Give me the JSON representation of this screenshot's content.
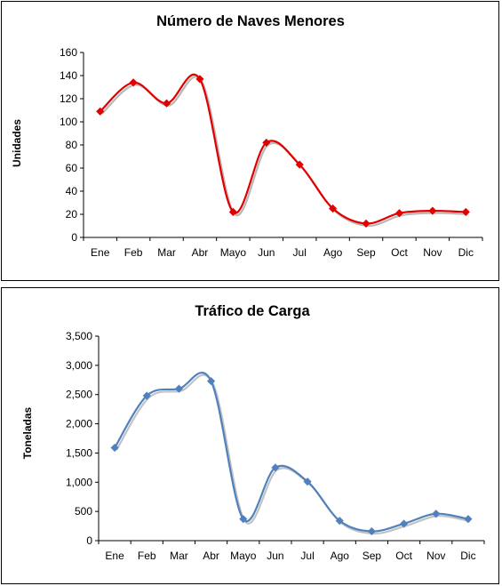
{
  "chart_data": [
    {
      "type": "line",
      "title": "Número de Naves Menores",
      "xlabel": "",
      "ylabel": "Unidades",
      "categories": [
        "Ene",
        "Feb",
        "Mar",
        "Abr",
        "Mayo",
        "Jun",
        "Jul",
        "Ago",
        "Sep",
        "Oct",
        "Nov",
        "Dic"
      ],
      "series": [
        {
          "values": [
            109,
            134,
            116,
            137,
            22,
            82,
            63,
            25,
            12,
            21,
            23,
            22
          ]
        }
      ],
      "ylim": [
        0,
        160
      ],
      "yticks": [
        0,
        20,
        40,
        60,
        80,
        100,
        120,
        140,
        160
      ],
      "ytick_labels": [
        "0",
        "20",
        "40",
        "60",
        "80",
        "100",
        "120",
        "140",
        "160"
      ],
      "smooth": true,
      "marker": "diamond",
      "color": "#e00000",
      "grid": false,
      "legend": "none"
    },
    {
      "type": "line",
      "title": "Tráfico de Carga",
      "xlabel": "",
      "ylabel": "Toneladas",
      "categories": [
        "Ene",
        "Feb",
        "Mar",
        "Abr",
        "Mayo",
        "Jun",
        "Jul",
        "Ago",
        "Sep",
        "Oct",
        "Nov",
        "Dic"
      ],
      "series": [
        {
          "values": [
            1590,
            2480,
            2600,
            2730,
            370,
            1250,
            1010,
            340,
            160,
            290,
            460,
            370
          ]
        }
      ],
      "ylim": [
        0,
        3500
      ],
      "yticks": [
        0,
        500,
        1000,
        1500,
        2000,
        2500,
        3000,
        3500
      ],
      "ytick_labels": [
        "0",
        "500",
        "1,000",
        "1,500",
        "2,000",
        "2,500",
        "3,000",
        "3,500"
      ],
      "smooth": true,
      "marker": "diamond",
      "color": "#4f81bd",
      "grid": false,
      "legend": "none"
    }
  ]
}
